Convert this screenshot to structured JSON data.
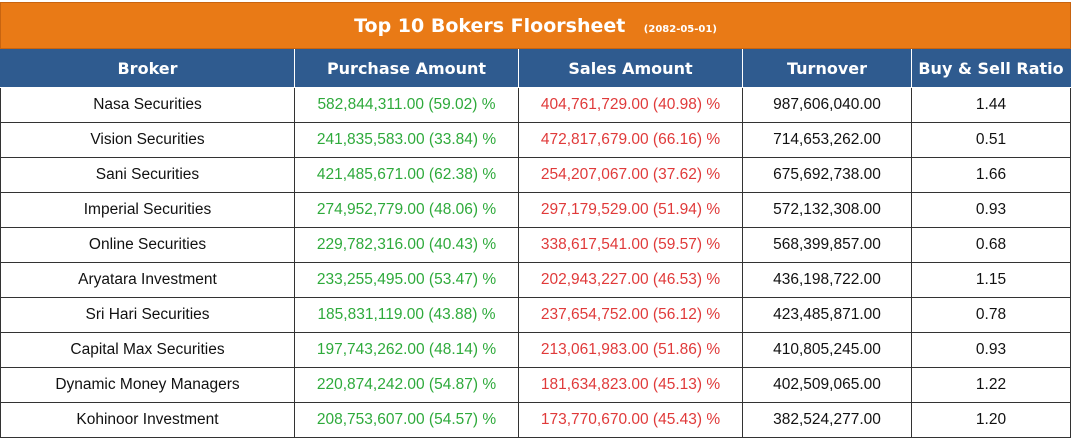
{
  "header": {
    "title": "Top 10 Bokers Floorsheet",
    "date": "(2082-05-01)"
  },
  "columns": [
    "Broker",
    "Purchase Amount",
    "Sales Amount",
    "Turnover",
    "Buy & Sell Ratio"
  ],
  "rows": [
    {
      "broker": "Nasa Securities",
      "purchase": "582,844,311.00 (59.02) %",
      "sales": "404,761,729.00 (40.98) %",
      "turnover": "987,606,040.00",
      "ratio": "1.44"
    },
    {
      "broker": "Vision Securities",
      "purchase": "241,835,583.00 (33.84) %",
      "sales": "472,817,679.00 (66.16) %",
      "turnover": "714,653,262.00",
      "ratio": "0.51"
    },
    {
      "broker": "Sani Securities",
      "purchase": "421,485,671.00 (62.38) %",
      "sales": "254,207,067.00 (37.62) %",
      "turnover": "675,692,738.00",
      "ratio": "1.66"
    },
    {
      "broker": "Imperial Securities",
      "purchase": "274,952,779.00 (48.06) %",
      "sales": "297,179,529.00 (51.94) %",
      "turnover": "572,132,308.00",
      "ratio": "0.93"
    },
    {
      "broker": "Online Securities",
      "purchase": "229,782,316.00 (40.43) %",
      "sales": "338,617,541.00 (59.57) %",
      "turnover": "568,399,857.00",
      "ratio": "0.68"
    },
    {
      "broker": "Aryatara Investment",
      "purchase": "233,255,495.00 (53.47) %",
      "sales": "202,943,227.00 (46.53) %",
      "turnover": "436,198,722.00",
      "ratio": "1.15"
    },
    {
      "broker": "Sri Hari Securities",
      "purchase": "185,831,119.00 (43.88) %",
      "sales": "237,654,752.00 (56.12) %",
      "turnover": "423,485,871.00",
      "ratio": "0.78"
    },
    {
      "broker": "Capital Max Securities",
      "purchase": "197,743,262.00 (48.14) %",
      "sales": "213,061,983.00 (51.86) %",
      "turnover": "410,805,245.00",
      "ratio": "0.93"
    },
    {
      "broker": "Dynamic Money Managers",
      "purchase": "220,874,242.00 (54.87) %",
      "sales": "181,634,823.00 (45.13) %",
      "turnover": "402,509,065.00",
      "ratio": "1.22"
    },
    {
      "broker": "Kohinoor Investment",
      "purchase": "208,753,607.00 (54.57) %",
      "sales": "173,770,670.00 (45.43) %",
      "turnover": "382,524,277.00",
      "ratio": "1.20"
    }
  ],
  "colors": {
    "title_bar": "#e97a16",
    "header_bar": "#2f5b8f",
    "purchase_text": "#2eaa3b",
    "sales_text": "#e03a3a"
  }
}
